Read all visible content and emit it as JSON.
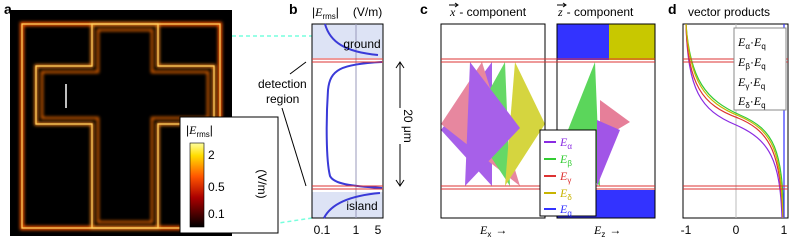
{
  "a": {
    "label": "a",
    "colorbar": {
      "bar": "|",
      "symbol": "E",
      "subscript": "rms",
      "ticks": [
        "2",
        "0.5",
        "0.1"
      ],
      "unit": "(V/m)"
    }
  },
  "b": {
    "label": "b",
    "title": {
      "bar": "|",
      "symbol": "E",
      "subscript": "rms",
      "unit": "(V/m)"
    },
    "regions": [
      "ground",
      "island"
    ],
    "annotation": [
      "detection",
      "region"
    ],
    "scale": "20 μm",
    "xticks": [
      "0.1",
      "1",
      "5"
    ]
  },
  "c": {
    "label": "c",
    "titles": [
      {
        "vector": "x",
        "text": "- component"
      },
      {
        "vector": "z",
        "text": "- component"
      }
    ],
    "legend": [
      {
        "symbol": "E",
        "subscript": "α"
      },
      {
        "symbol": "E",
        "subscript": "β"
      },
      {
        "symbol": "E",
        "subscript": "γ"
      },
      {
        "symbol": "E",
        "subscript": "δ"
      },
      {
        "symbol": "E",
        "subscript": "q"
      }
    ],
    "xlabels": [
      {
        "symbol": "E",
        "subscript": "x",
        "arrow": "→"
      },
      {
        "symbol": "E",
        "subscript": "z",
        "arrow": "→"
      }
    ]
  },
  "d": {
    "label": "d",
    "title": "vector products",
    "operator": "·",
    "legend": [
      {
        "symbol": "E",
        "first": "α",
        "second": "q"
      },
      {
        "symbol": "E",
        "first": "β",
        "second": "q"
      },
      {
        "symbol": "E",
        "first": "γ",
        "second": "q"
      },
      {
        "symbol": "E",
        "first": "δ",
        "second": "q"
      }
    ],
    "xticks": [
      "-1",
      "0",
      "1"
    ]
  }
}
